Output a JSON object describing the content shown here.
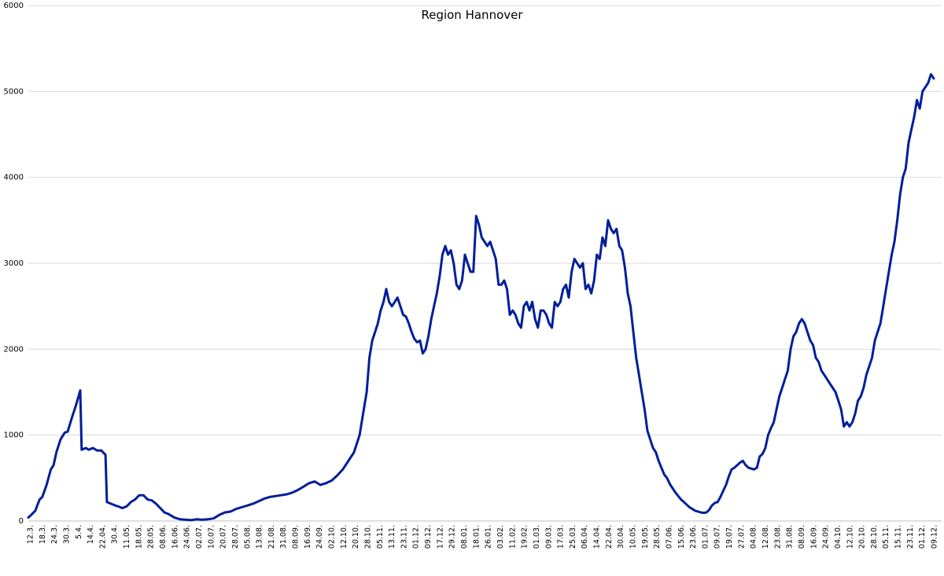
{
  "chart_data": {
    "type": "line",
    "title": "Region Hannover",
    "xlabel": "",
    "ylabel": "",
    "ylim": [
      0,
      6000
    ],
    "yticks": [
      0,
      1000,
      2000,
      3000,
      4000,
      5000,
      6000
    ],
    "grid": true,
    "legend": "none",
    "color": "#001e9a",
    "xtick_labels": [
      "12.3.",
      "18.3.",
      "24.3.",
      "30.3.",
      "5.4.",
      "14.4.",
      "22.04.",
      "30.4.",
      "11.05.",
      "18.05.",
      "28.05.",
      "08.06.",
      "16.06.",
      "24.06.",
      "02.07.",
      "10.07.",
      "20.07.",
      "28.07.",
      "05.08.",
      "13.08.",
      "21.08.",
      "31.08.",
      "08.09.",
      "16.09.",
      "24.09.",
      "02.10.",
      "12.10.",
      "20.10.",
      "28.10.",
      "05.11.",
      "13.11.",
      "23.11.",
      "01.12.",
      "09.12.",
      "17.12.",
      "29.12.",
      "08.01.",
      "18.01.",
      "26.01.",
      "03.02.",
      "11.02.",
      "19.02.",
      "01.03.",
      "09.03.",
      "17.03.",
      "25.03.",
      "06.04.",
      "14.04.",
      "22.04.",
      "30.04.",
      "10.05.",
      "19.05.",
      "28.05.",
      "07.06.",
      "15.06.",
      "23.06.",
      "01.07.",
      "09.07.",
      "19.07.",
      "27.07.",
      "04.08.",
      "12.08.",
      "23.08.",
      "31.08.",
      "08.09.",
      "16.09.",
      "24.09.",
      "04.10.",
      "12.10.",
      "20.10.",
      "28.10.",
      "05.11.",
      "15.11.",
      "23.11.",
      "01.12.",
      "09.12."
    ],
    "series": [
      {
        "values": [
          [
            0,
            40
          ],
          [
            2,
            70
          ],
          [
            5,
            120
          ],
          [
            8,
            250
          ],
          [
            10,
            280
          ],
          [
            13,
            420
          ],
          [
            16,
            600
          ],
          [
            18,
            650
          ],
          [
            20,
            800
          ],
          [
            23,
            950
          ],
          [
            26,
            1030
          ],
          [
            28,
            1040
          ],
          [
            31,
            1200
          ],
          [
            34,
            1350
          ],
          [
            37,
            1520
          ],
          [
            38,
            830
          ],
          [
            41,
            850
          ],
          [
            43,
            830
          ],
          [
            46,
            850
          ],
          [
            49,
            820
          ],
          [
            52,
            820
          ],
          [
            55,
            770
          ],
          [
            56,
            220
          ],
          [
            59,
            200
          ],
          [
            62,
            180
          ],
          [
            64,
            170
          ],
          [
            67,
            150
          ],
          [
            70,
            170
          ],
          [
            73,
            220
          ],
          [
            76,
            250
          ],
          [
            79,
            300
          ],
          [
            82,
            300
          ],
          [
            85,
            250
          ],
          [
            88,
            240
          ],
          [
            91,
            200
          ],
          [
            94,
            150
          ],
          [
            97,
            100
          ],
          [
            100,
            80
          ],
          [
            104,
            40
          ],
          [
            108,
            20
          ],
          [
            112,
            15
          ],
          [
            116,
            10
          ],
          [
            120,
            20
          ],
          [
            124,
            15
          ],
          [
            128,
            20
          ],
          [
            132,
            30
          ],
          [
            136,
            70
          ],
          [
            140,
            100
          ],
          [
            144,
            110
          ],
          [
            148,
            140
          ],
          [
            152,
            160
          ],
          [
            156,
            180
          ],
          [
            160,
            200
          ],
          [
            164,
            230
          ],
          [
            168,
            260
          ],
          [
            172,
            280
          ],
          [
            176,
            290
          ],
          [
            180,
            300
          ],
          [
            184,
            310
          ],
          [
            188,
            330
          ],
          [
            192,
            360
          ],
          [
            196,
            400
          ],
          [
            200,
            440
          ],
          [
            204,
            460
          ],
          [
            208,
            420
          ],
          [
            212,
            440
          ],
          [
            216,
            470
          ],
          [
            220,
            530
          ],
          [
            224,
            600
          ],
          [
            228,
            700
          ],
          [
            232,
            800
          ],
          [
            236,
            1000
          ],
          [
            238,
            1200
          ],
          [
            241,
            1500
          ],
          [
            243,
            1900
          ],
          [
            245,
            2100
          ],
          [
            247,
            2200
          ],
          [
            249,
            2300
          ],
          [
            251,
            2450
          ],
          [
            253,
            2550
          ],
          [
            255,
            2700
          ],
          [
            257,
            2550
          ],
          [
            259,
            2500
          ],
          [
            261,
            2550
          ],
          [
            263,
            2600
          ],
          [
            265,
            2500
          ],
          [
            267,
            2400
          ],
          [
            269,
            2380
          ],
          [
            271,
            2300
          ],
          [
            273,
            2200
          ],
          [
            275,
            2120
          ],
          [
            277,
            2080
          ],
          [
            279,
            2100
          ],
          [
            281,
            1950
          ],
          [
            283,
            2000
          ],
          [
            285,
            2150
          ],
          [
            287,
            2350
          ],
          [
            289,
            2500
          ],
          [
            291,
            2650
          ],
          [
            293,
            2850
          ],
          [
            295,
            3100
          ],
          [
            297,
            3200
          ],
          [
            299,
            3100
          ],
          [
            301,
            3150
          ],
          [
            303,
            3000
          ],
          [
            305,
            2750
          ],
          [
            307,
            2700
          ],
          [
            309,
            2800
          ],
          [
            311,
            3100
          ],
          [
            313,
            3000
          ],
          [
            315,
            2900
          ],
          [
            317,
            2900
          ],
          [
            319,
            3550
          ],
          [
            321,
            3450
          ],
          [
            323,
            3300
          ],
          [
            325,
            3250
          ],
          [
            327,
            3200
          ],
          [
            329,
            3250
          ],
          [
            331,
            3150
          ],
          [
            333,
            3050
          ],
          [
            335,
            2750
          ],
          [
            337,
            2750
          ],
          [
            339,
            2800
          ],
          [
            341,
            2700
          ],
          [
            343,
            2400
          ],
          [
            345,
            2450
          ],
          [
            347,
            2400
          ],
          [
            349,
            2300
          ],
          [
            351,
            2250
          ],
          [
            353,
            2500
          ],
          [
            355,
            2550
          ],
          [
            357,
            2450
          ],
          [
            359,
            2550
          ],
          [
            361,
            2350
          ],
          [
            363,
            2250
          ],
          [
            365,
            2450
          ],
          [
            367,
            2450
          ],
          [
            369,
            2400
          ],
          [
            371,
            2300
          ],
          [
            373,
            2250
          ],
          [
            375,
            2550
          ],
          [
            377,
            2500
          ],
          [
            379,
            2550
          ],
          [
            381,
            2700
          ],
          [
            383,
            2750
          ],
          [
            385,
            2600
          ],
          [
            387,
            2900
          ],
          [
            389,
            3050
          ],
          [
            391,
            3000
          ],
          [
            393,
            2950
          ],
          [
            395,
            3000
          ],
          [
            397,
            2700
          ],
          [
            399,
            2750
          ],
          [
            401,
            2650
          ],
          [
            403,
            2800
          ],
          [
            405,
            3100
          ],
          [
            407,
            3050
          ],
          [
            409,
            3300
          ],
          [
            411,
            3200
          ],
          [
            413,
            3500
          ],
          [
            415,
            3400
          ],
          [
            417,
            3350
          ],
          [
            419,
            3400
          ],
          [
            421,
            3200
          ],
          [
            423,
            3150
          ],
          [
            425,
            2950
          ],
          [
            427,
            2650
          ],
          [
            429,
            2500
          ],
          [
            431,
            2200
          ],
          [
            433,
            1900
          ],
          [
            435,
            1700
          ],
          [
            437,
            1500
          ],
          [
            439,
            1300
          ],
          [
            441,
            1050
          ],
          [
            443,
            950
          ],
          [
            445,
            850
          ],
          [
            447,
            800
          ],
          [
            449,
            700
          ],
          [
            451,
            620
          ],
          [
            453,
            540
          ],
          [
            455,
            500
          ],
          [
            457,
            430
          ],
          [
            459,
            380
          ],
          [
            461,
            330
          ],
          [
            463,
            290
          ],
          [
            465,
            250
          ],
          [
            467,
            220
          ],
          [
            469,
            190
          ],
          [
            471,
            160
          ],
          [
            473,
            140
          ],
          [
            475,
            120
          ],
          [
            477,
            110
          ],
          [
            479,
            100
          ],
          [
            481,
            95
          ],
          [
            483,
            100
          ],
          [
            485,
            130
          ],
          [
            487,
            180
          ],
          [
            489,
            210
          ],
          [
            491,
            220
          ],
          [
            493,
            280
          ],
          [
            495,
            350
          ],
          [
            497,
            420
          ],
          [
            499,
            520
          ],
          [
            501,
            600
          ],
          [
            503,
            620
          ],
          [
            505,
            650
          ],
          [
            507,
            680
          ],
          [
            509,
            700
          ],
          [
            511,
            650
          ],
          [
            513,
            620
          ],
          [
            515,
            610
          ],
          [
            517,
            600
          ],
          [
            519,
            620
          ],
          [
            521,
            750
          ],
          [
            523,
            780
          ],
          [
            525,
            850
          ],
          [
            527,
            1000
          ],
          [
            529,
            1080
          ],
          [
            531,
            1150
          ],
          [
            533,
            1300
          ],
          [
            535,
            1450
          ],
          [
            537,
            1550
          ],
          [
            539,
            1650
          ],
          [
            541,
            1750
          ],
          [
            543,
            2000
          ],
          [
            545,
            2150
          ],
          [
            547,
            2200
          ],
          [
            549,
            2300
          ],
          [
            551,
            2350
          ],
          [
            553,
            2300
          ],
          [
            555,
            2200
          ],
          [
            557,
            2100
          ],
          [
            559,
            2050
          ],
          [
            561,
            1900
          ],
          [
            563,
            1850
          ],
          [
            565,
            1750
          ],
          [
            567,
            1700
          ],
          [
            569,
            1650
          ],
          [
            571,
            1600
          ],
          [
            573,
            1550
          ],
          [
            575,
            1500
          ],
          [
            577,
            1400
          ],
          [
            579,
            1300
          ],
          [
            581,
            1100
          ],
          [
            583,
            1150
          ],
          [
            585,
            1100
          ],
          [
            587,
            1150
          ],
          [
            589,
            1250
          ],
          [
            591,
            1400
          ],
          [
            593,
            1450
          ],
          [
            595,
            1550
          ],
          [
            597,
            1700
          ],
          [
            599,
            1800
          ],
          [
            601,
            1900
          ],
          [
            603,
            2100
          ],
          [
            605,
            2200
          ],
          [
            607,
            2300
          ],
          [
            609,
            2500
          ],
          [
            611,
            2700
          ],
          [
            613,
            2900
          ],
          [
            615,
            3100
          ],
          [
            617,
            3250
          ],
          [
            619,
            3500
          ],
          [
            621,
            3800
          ],
          [
            623,
            4000
          ],
          [
            625,
            4100
          ],
          [
            627,
            4400
          ],
          [
            629,
            4550
          ],
          [
            631,
            4700
          ],
          [
            633,
            4900
          ],
          [
            635,
            4800
          ],
          [
            637,
            5000
          ],
          [
            639,
            5050
          ],
          [
            641,
            5100
          ],
          [
            643,
            5200
          ],
          [
            645,
            5150
          ]
        ]
      }
    ]
  }
}
